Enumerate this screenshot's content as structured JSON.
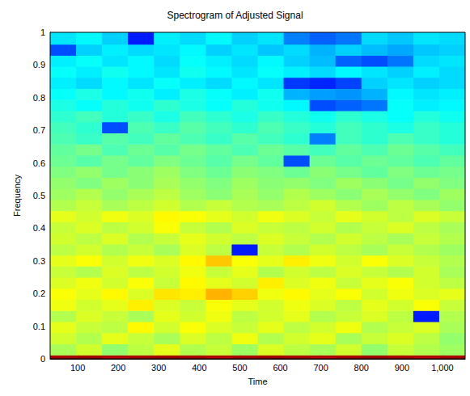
{
  "chart_data": {
    "type": "heatmap",
    "title": "Spectrogram of Adjusted Signal",
    "x_label": "Time",
    "y_label": "Frequency",
    "xlim": [
      32,
      1056
    ],
    "ylim": [
      0,
      1
    ],
    "xticks": [
      100,
      200,
      300,
      400,
      500,
      600,
      700,
      800,
      900,
      1000
    ],
    "yticks": [
      0,
      0.1,
      0.2,
      0.3,
      0.4,
      0.5,
      0.6,
      0.7,
      0.8,
      0.9,
      1
    ],
    "grid": false,
    "time_edges": [
      32,
      96,
      160,
      224,
      288,
      352,
      416,
      480,
      544,
      608,
      672,
      736,
      800,
      864,
      928,
      992,
      1056
    ],
    "freq_edges": [
      0,
      0.012,
      0.046,
      0.08,
      0.114,
      0.148,
      0.182,
      0.216,
      0.25,
      0.284,
      0.318,
      0.352,
      0.386,
      0.42,
      0.454,
      0.488,
      0.522,
      0.556,
      0.59,
      0.624,
      0.658,
      0.692,
      0.726,
      0.76,
      0.794,
      0.828,
      0.862,
      0.896,
      0.93,
      0.964,
      1.0
    ],
    "zlim": [
      0,
      100
    ],
    "cells": [
      [
        96,
        97,
        95,
        96,
        97,
        96,
        95,
        96,
        97,
        96,
        95,
        96,
        97,
        96,
        95,
        96
      ],
      [
        54,
        58,
        52,
        56,
        60,
        55,
        57,
        53,
        59,
        56,
        54,
        58,
        52,
        57,
        55,
        53
      ],
      [
        58,
        55,
        60,
        57,
        54,
        59,
        56,
        61,
        55,
        58,
        60,
        54,
        57,
        59,
        56,
        52
      ],
      [
        60,
        57,
        56,
        63,
        58,
        62,
        59,
        57,
        60,
        56,
        58,
        61,
        55,
        57,
        59,
        54
      ],
      [
        55,
        59,
        57,
        54,
        60,
        58,
        61,
        56,
        58,
        60,
        55,
        57,
        59,
        56,
        15,
        55
      ],
      [
        61,
        58,
        60,
        64,
        59,
        57,
        62,
        60,
        58,
        61,
        59,
        56,
        60,
        58,
        62,
        57
      ],
      [
        62,
        60,
        63,
        59,
        65,
        64,
        70,
        67,
        61,
        63,
        60,
        62,
        58,
        61,
        59,
        60
      ],
      [
        59,
        61,
        58,
        62,
        57,
        63,
        60,
        58,
        64,
        59,
        61,
        57,
        60,
        62,
        58,
        56
      ],
      [
        57,
        55,
        59,
        56,
        58,
        61,
        57,
        60,
        55,
        58,
        56,
        59,
        57,
        55,
        58,
        54
      ],
      [
        60,
        62,
        58,
        61,
        59,
        63,
        68,
        62,
        60,
        64,
        61,
        58,
        62,
        59,
        57,
        55
      ],
      [
        56,
        58,
        55,
        57,
        54,
        59,
        56,
        15,
        57,
        55,
        58,
        56,
        54,
        57,
        55,
        53
      ],
      [
        58,
        56,
        59,
        55,
        57,
        60,
        58,
        56,
        59,
        57,
        55,
        58,
        56,
        54,
        57,
        55
      ],
      [
        57,
        59,
        56,
        58,
        62,
        57,
        55,
        59,
        57,
        56,
        58,
        55,
        57,
        59,
        56,
        54
      ],
      [
        60,
        58,
        61,
        59,
        63,
        62,
        60,
        58,
        61,
        59,
        57,
        60,
        58,
        56,
        59,
        57
      ],
      [
        55,
        57,
        54,
        56,
        58,
        55,
        57,
        55,
        54,
        56,
        58,
        55,
        53,
        56,
        54,
        52
      ],
      [
        53,
        55,
        52,
        54,
        56,
        53,
        51,
        54,
        52,
        55,
        53,
        51,
        54,
        52,
        50,
        53
      ],
      [
        52,
        50,
        53,
        51,
        54,
        52,
        50,
        53,
        51,
        52,
        50,
        53,
        51,
        49,
        52,
        50
      ],
      [
        50,
        52,
        49,
        51,
        53,
        50,
        48,
        51,
        50,
        48,
        51,
        49,
        47,
        50,
        48,
        49
      ],
      [
        48,
        46,
        49,
        47,
        50,
        48,
        46,
        49,
        47,
        20,
        48,
        46,
        48,
        47,
        45,
        47
      ],
      [
        47,
        49,
        45,
        48,
        46,
        49,
        47,
        45,
        48,
        46,
        44,
        47,
        45,
        48,
        46,
        44
      ],
      [
        45,
        43,
        46,
        44,
        47,
        45,
        43,
        46,
        44,
        42,
        25,
        44,
        42,
        45,
        43,
        41
      ],
      [
        44,
        42,
        20,
        45,
        43,
        46,
        44,
        42,
        45,
        43,
        41,
        44,
        42,
        40,
        43,
        41
      ],
      [
        42,
        44,
        41,
        43,
        40,
        44,
        42,
        40,
        43,
        41,
        39,
        42,
        40,
        38,
        41,
        39
      ],
      [
        40,
        38,
        41,
        39,
        42,
        40,
        38,
        41,
        39,
        37,
        20,
        22,
        24,
        38,
        36,
        37
      ],
      [
        38,
        40,
        37,
        39,
        36,
        40,
        38,
        36,
        39,
        30,
        28,
        27,
        30,
        37,
        35,
        36
      ],
      [
        36,
        34,
        37,
        35,
        38,
        36,
        34,
        37,
        35,
        18,
        16,
        19,
        33,
        35,
        33,
        34
      ],
      [
        38,
        36,
        39,
        37,
        35,
        39,
        37,
        35,
        38,
        36,
        34,
        37,
        35,
        33,
        36,
        34
      ],
      [
        36,
        38,
        35,
        37,
        34,
        38,
        36,
        34,
        37,
        33,
        31,
        22,
        20,
        24,
        34,
        35
      ],
      [
        20,
        33,
        36,
        34,
        35,
        37,
        33,
        35,
        32,
        34,
        30,
        33,
        31,
        29,
        32,
        33
      ],
      [
        35,
        37,
        33,
        15,
        36,
        34,
        37,
        33,
        35,
        25,
        22,
        24,
        34,
        32,
        35,
        34
      ]
    ]
  }
}
